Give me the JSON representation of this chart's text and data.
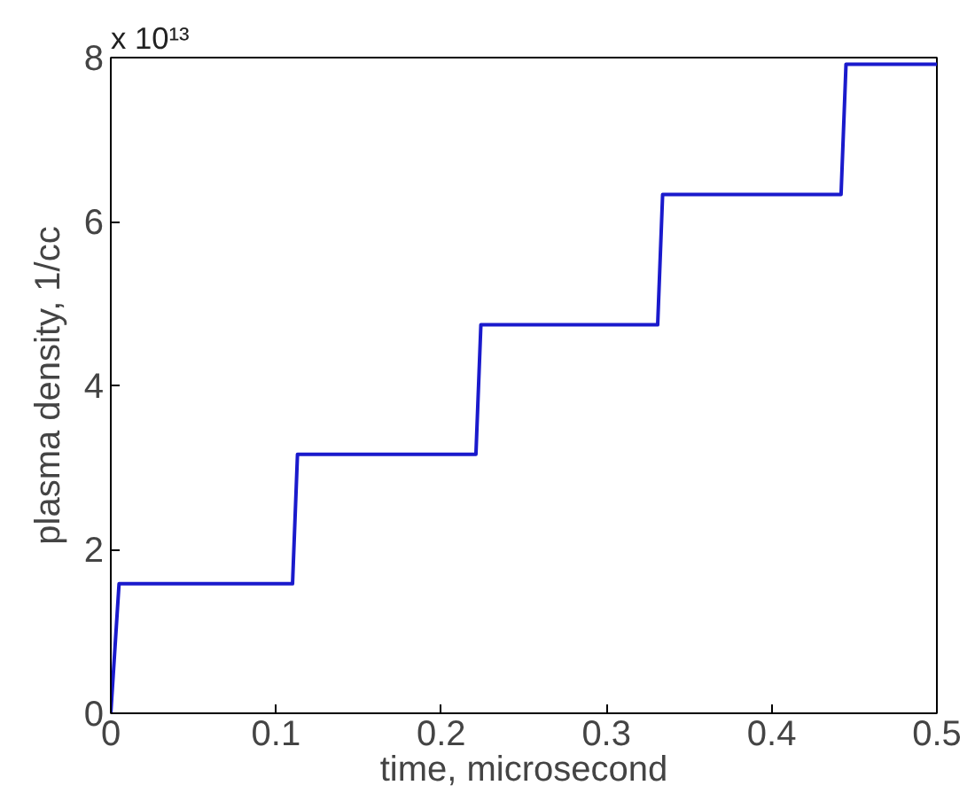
{
  "chart_data": {
    "type": "line",
    "xlabel": "time, microsecond",
    "ylabel": "plasma density, 1/cc",
    "annotations": [
      "x 10¹³"
    ],
    "x": [
      0,
      0.005,
      0.11,
      0.113,
      0.221,
      0.224,
      0.331,
      0.334,
      0.442,
      0.445,
      0.5
    ],
    "series": [
      {
        "color": "#1a1acc",
        "values": [
          0,
          1.58,
          1.58,
          3.16,
          3.16,
          4.74,
          4.74,
          6.33,
          6.33,
          7.92,
          7.92
        ]
      }
    ],
    "xlim": [
      0,
      0.5
    ],
    "xticks": [
      0,
      0.1,
      0.2,
      0.3,
      0.4,
      0.5
    ],
    "ylim": [
      0,
      8
    ],
    "yticks": [
      0,
      2,
      4,
      6,
      8
    ],
    "grid": false,
    "marker": "none",
    "line_style": "solid"
  }
}
